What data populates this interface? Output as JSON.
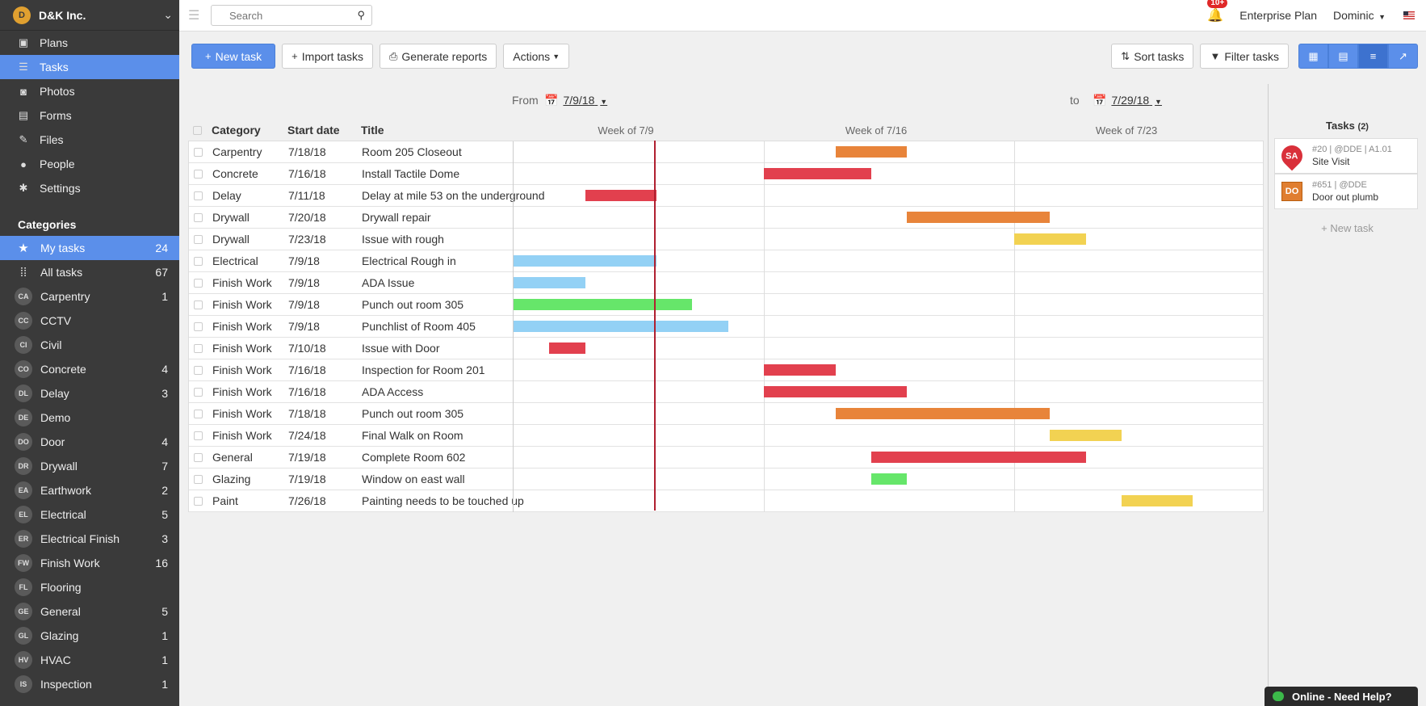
{
  "company": {
    "name": "D&K Inc.",
    "logo_text": "D"
  },
  "nav": [
    {
      "label": "Plans",
      "icon": "plans-icon",
      "glyph": "▣",
      "active": false
    },
    {
      "label": "Tasks",
      "icon": "list-icon",
      "glyph": "☰",
      "active": true
    },
    {
      "label": "Photos",
      "icon": "camera-icon",
      "glyph": "◙",
      "active": false
    },
    {
      "label": "Forms",
      "icon": "forms-icon",
      "glyph": "▤",
      "active": false
    },
    {
      "label": "Files",
      "icon": "paperclip-icon",
      "glyph": "✎",
      "active": false
    },
    {
      "label": "People",
      "icon": "people-icon",
      "glyph": "●",
      "active": false
    },
    {
      "label": "Settings",
      "icon": "gear-icon",
      "glyph": "✱",
      "active": false
    }
  ],
  "categories_title": "Categories",
  "categories": [
    {
      "label": "My tasks",
      "badge": "",
      "glyph": "★",
      "count": "24",
      "active": true
    },
    {
      "label": "All tasks",
      "badge": "",
      "glyph": "⁞⁞",
      "count": "67",
      "active": false
    },
    {
      "label": "Carpentry",
      "badge": "CA",
      "count": "1"
    },
    {
      "label": "CCTV",
      "badge": "CC",
      "count": ""
    },
    {
      "label": "Civil",
      "badge": "CI",
      "count": ""
    },
    {
      "label": "Concrete",
      "badge": "CO",
      "count": "4"
    },
    {
      "label": "Delay",
      "badge": "DL",
      "count": "3"
    },
    {
      "label": "Demo",
      "badge": "DE",
      "count": ""
    },
    {
      "label": "Door",
      "badge": "DO",
      "count": "4"
    },
    {
      "label": "Drywall",
      "badge": "DR",
      "count": "7"
    },
    {
      "label": "Earthwork",
      "badge": "EA",
      "count": "2"
    },
    {
      "label": "Electrical",
      "badge": "EL",
      "count": "5"
    },
    {
      "label": "Electrical Finish",
      "badge": "ER",
      "count": "3"
    },
    {
      "label": "Finish Work",
      "badge": "FW",
      "count": "16"
    },
    {
      "label": "Flooring",
      "badge": "FL",
      "count": ""
    },
    {
      "label": "General",
      "badge": "GE",
      "count": "5"
    },
    {
      "label": "Glazing",
      "badge": "GL",
      "count": "1"
    },
    {
      "label": "HVAC",
      "badge": "HV",
      "count": "1"
    },
    {
      "label": "Inspection",
      "badge": "IS",
      "count": "1"
    }
  ],
  "topbar": {
    "search_placeholder": "Search",
    "notifications": "10+",
    "plan": "Enterprise Plan",
    "user": "Dominic"
  },
  "toolbar": {
    "new_task": "New task",
    "import_tasks": "Import tasks",
    "generate_reports": "Generate reports",
    "actions": "Actions",
    "sort_tasks": "Sort tasks",
    "filter_tasks": "Filter tasks"
  },
  "range": {
    "from_label": "From",
    "from": "7/9/18",
    "to_label": "to",
    "to": "7/29/18"
  },
  "columns": {
    "category": "Category",
    "start": "Start date",
    "title": "Title"
  },
  "weeks": [
    "Week of 7/9",
    "Week of 7/16",
    "Week of 7/23"
  ],
  "colors": {
    "red": "#e2404e",
    "orange": "#e8843a",
    "yellow": "#f2d252",
    "blue": "#93d1f5",
    "green": "#66e66a",
    "accent": "#5b8fea",
    "today": "#b02030"
  },
  "tasks": [
    {
      "category": "Carpentry",
      "start": "7/18/18",
      "title": "Room 205 Closeout",
      "bar_start": 9,
      "bar_days": 2,
      "color": "orange"
    },
    {
      "category": "Concrete",
      "start": "7/16/18",
      "title": "Install Tactile Dome",
      "bar_start": 7,
      "bar_days": 3,
      "color": "red"
    },
    {
      "category": "Delay",
      "start": "7/11/18",
      "title": "Delay at mile 53 on the underground",
      "bar_start": 2,
      "bar_days": 2,
      "color": "red"
    },
    {
      "category": "Drywall",
      "start": "7/20/18",
      "title": "Drywall repair",
      "bar_start": 11,
      "bar_days": 4,
      "color": "orange"
    },
    {
      "category": "Drywall",
      "start": "7/23/18",
      "title": "Issue with rough",
      "bar_start": 14,
      "bar_days": 2,
      "color": "yellow"
    },
    {
      "category": "Electrical",
      "start": "7/9/18",
      "title": "Electrical Rough in",
      "bar_start": 0,
      "bar_days": 4,
      "color": "blue"
    },
    {
      "category": "Finish Work",
      "start": "7/9/18",
      "title": "ADA Issue",
      "bar_start": 0,
      "bar_days": 2,
      "color": "blue"
    },
    {
      "category": "Finish Work",
      "start": "7/9/18",
      "title": "Punch out room 305",
      "bar_start": 0,
      "bar_days": 5,
      "color": "green"
    },
    {
      "category": "Finish Work",
      "start": "7/9/18",
      "title": "Punchlist of Room 405",
      "bar_start": 0,
      "bar_days": 6,
      "color": "blue"
    },
    {
      "category": "Finish Work",
      "start": "7/10/18",
      "title": "Issue with Door",
      "bar_start": 1,
      "bar_days": 1,
      "color": "red"
    },
    {
      "category": "Finish Work",
      "start": "7/16/18",
      "title": "Inspection for Room 201",
      "bar_start": 7,
      "bar_days": 2,
      "color": "red"
    },
    {
      "category": "Finish Work",
      "start": "7/16/18",
      "title": "ADA Access",
      "bar_start": 7,
      "bar_days": 4,
      "color": "red"
    },
    {
      "category": "Finish Work",
      "start": "7/18/18",
      "title": "Punch out room 305",
      "bar_start": 9,
      "bar_days": 6,
      "color": "orange"
    },
    {
      "category": "Finish Work",
      "start": "7/24/18",
      "title": "Final Walk on Room",
      "bar_start": 15,
      "bar_days": 2,
      "color": "yellow"
    },
    {
      "category": "General",
      "start": "7/19/18",
      "title": "Complete Room 602",
      "bar_start": 10,
      "bar_days": 6,
      "color": "red"
    },
    {
      "category": "Glazing",
      "start": "7/19/18",
      "title": "Window on east wall",
      "bar_start": 10,
      "bar_days": 1,
      "color": "green"
    },
    {
      "category": "Paint",
      "start": "7/26/18",
      "title": "Painting needs to be touched up",
      "bar_start": 17,
      "bar_days": 2,
      "color": "yellow"
    }
  ],
  "today_day_offset": 4,
  "side_panel": {
    "title": "Tasks",
    "count": "(2)",
    "items": [
      {
        "badge": "SA",
        "kind": "pin",
        "meta": "#20 | @DDE | A1.01",
        "title": "Site Visit"
      },
      {
        "badge": "DO",
        "kind": "square",
        "meta": "#651 | @DDE",
        "title": "Door out plumb"
      }
    ],
    "new_task": "+ New task"
  },
  "help": "Online - Need Help?"
}
